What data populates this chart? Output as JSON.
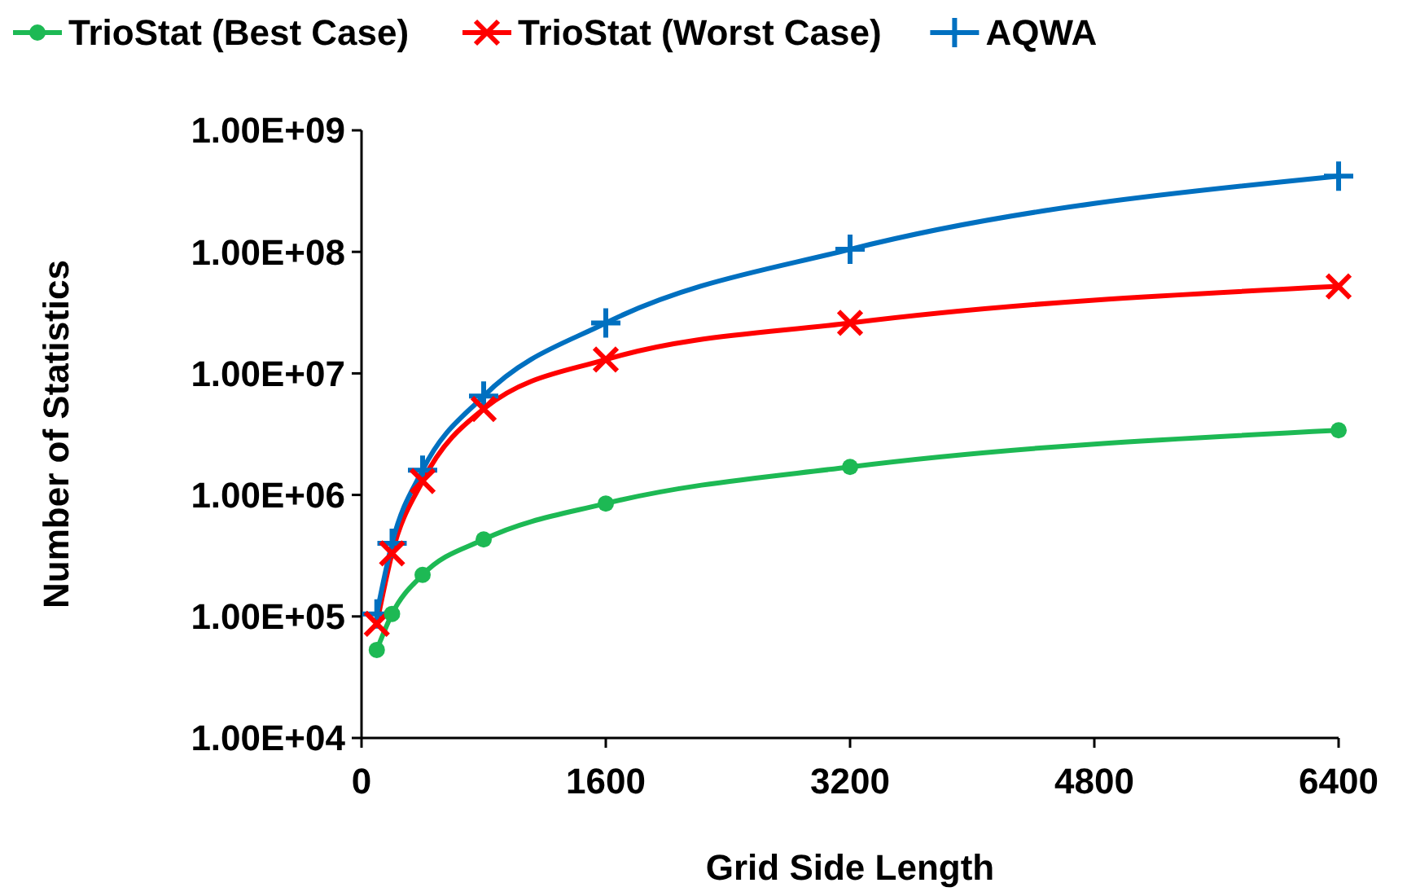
{
  "chart_data": {
    "type": "line",
    "xlabel": "Grid Side Length",
    "ylabel": "Number of Statistics",
    "log": "y",
    "x": [
      100,
      200,
      400,
      800,
      1600,
      3200,
      6400
    ],
    "series": [
      {
        "name": "TrioStat (Best Case)",
        "color": "#1db954",
        "marker": "circle",
        "values": [
          53000,
          105000,
          220000,
          430000,
          850000,
          1700000,
          3400000
        ]
      },
      {
        "name": "TrioStat (Worst Case)",
        "color": "#ff0000",
        "marker": "cross",
        "values": [
          87000,
          330000,
          1300000,
          5100000,
          13000000,
          26000000,
          52000000
        ]
      },
      {
        "name": "AQWA",
        "color": "#0070c0",
        "marker": "plus",
        "values": [
          105000,
          400000,
          1600000,
          6500000,
          26000000,
          105000000,
          420000000
        ]
      }
    ],
    "xlim": [
      0,
      6400
    ],
    "xticks": [
      0,
      1600,
      3200,
      4800,
      6400
    ],
    "ylim": [
      10000,
      1000000000
    ],
    "yticks": [
      {
        "value": 10000,
        "label": "1.00E+04"
      },
      {
        "value": 100000,
        "label": "1.00E+05"
      },
      {
        "value": 1000000,
        "label": "1.00E+06"
      },
      {
        "value": 10000000,
        "label": "1.00E+07"
      },
      {
        "value": 100000000,
        "label": "1.00E+08"
      },
      {
        "value": 1000000000,
        "label": "1.00E+09"
      }
    ],
    "grid": false,
    "legend": "top"
  }
}
